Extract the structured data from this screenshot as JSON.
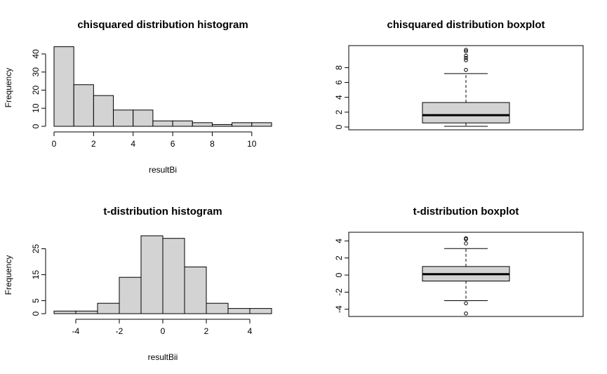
{
  "colors": {
    "fill": "#d3d3d3",
    "stroke": "#000000",
    "background": "#ffffff"
  },
  "chart_data": [
    {
      "type": "bar",
      "subtype": "histogram",
      "title": "chisquared distribution histogram",
      "xlabel": "resultBi",
      "ylabel": "Frequency",
      "bins": [
        [
          0,
          1
        ],
        [
          1,
          2
        ],
        [
          2,
          3
        ],
        [
          3,
          4
        ],
        [
          4,
          5
        ],
        [
          5,
          6
        ],
        [
          6,
          7
        ],
        [
          7,
          8
        ],
        [
          8,
          9
        ],
        [
          9,
          10
        ],
        [
          10,
          11
        ]
      ],
      "values": [
        44,
        23,
        17,
        9,
        9,
        3,
        3,
        2,
        1,
        2,
        2
      ],
      "xlim": [
        0,
        11
      ],
      "ylim": [
        0,
        45
      ],
      "xticks": [
        0,
        2,
        4,
        6,
        8,
        10
      ],
      "yticks": [
        0,
        10,
        20,
        30,
        40
      ],
      "grid": false,
      "legend": "none"
    },
    {
      "type": "boxplot",
      "title": "chisquared distribution boxplot",
      "xlabel": "",
      "ylabel": "",
      "box": {
        "whisker_low": 0.1,
        "q1": 0.55,
        "median": 1.6,
        "q3": 3.3,
        "whisker_high": 7.2
      },
      "outliers": [
        7.7,
        9.0,
        9.3,
        9.6,
        10.2,
        10.4
      ],
      "ylim": [
        0,
        10.5
      ],
      "yticks": [
        0,
        2,
        4,
        6,
        8
      ],
      "grid": false,
      "legend": "none"
    },
    {
      "type": "bar",
      "subtype": "histogram",
      "title": "t-distribution histogram",
      "xlabel": "resultBii",
      "ylabel": "Frequency",
      "bins": [
        [
          -5,
          -4
        ],
        [
          -4,
          -3
        ],
        [
          -3,
          -2
        ],
        [
          -2,
          -1
        ],
        [
          -1,
          0
        ],
        [
          0,
          1
        ],
        [
          1,
          2
        ],
        [
          2,
          3
        ],
        [
          3,
          4
        ],
        [
          4,
          5
        ]
      ],
      "values": [
        1,
        1,
        4,
        14,
        30,
        29,
        18,
        4,
        2,
        2
      ],
      "xlim": [
        -5,
        5
      ],
      "ylim": [
        0,
        30
      ],
      "xticks": [
        -4,
        -2,
        0,
        2,
        4
      ],
      "yticks": [
        0,
        5,
        15,
        25
      ],
      "grid": false,
      "legend": "none"
    },
    {
      "type": "boxplot",
      "title": "t-distribution boxplot",
      "xlabel": "",
      "ylabel": "",
      "box": {
        "whisker_low": -3.0,
        "q1": -0.7,
        "median": 0.1,
        "q3": 1.0,
        "whisker_high": 3.1
      },
      "outliers": [
        -3.3,
        -4.5,
        3.7,
        4.2,
        4.3
      ],
      "ylim": [
        -4.6,
        4.6
      ],
      "yticks": [
        -4,
        -2,
        0,
        2,
        4
      ],
      "grid": false,
      "legend": "none"
    }
  ]
}
